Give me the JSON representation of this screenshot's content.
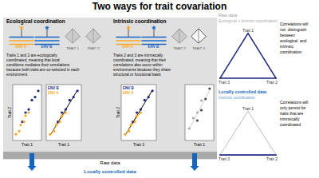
{
  "chart_data": [
    {
      "type": "scatter",
      "title": "Two ways for trait covariation",
      "x_label": "Trait 1",
      "y_label": "Trait 2",
      "xlim": [
        0,
        9
      ],
      "ylim": [
        0,
        9
      ],
      "tick_labels": false,
      "series": [
        {
          "color": "#1a237e",
          "x": [
            3,
            4,
            5,
            6,
            7,
            8
          ],
          "values": [
            3,
            4.5,
            5,
            6.5,
            7,
            8
          ]
        },
        {
          "color": "#f9a825",
          "x": [
            1,
            2,
            2.5,
            3.5,
            4,
            5
          ],
          "values": [
            1,
            1.5,
            2.5,
            3,
            4,
            4.5
          ]
        }
      ],
      "annotations": [
        "Ecological coordination",
        "Intrinsic coordination",
        "Traits 1 and 2 are ecologically\ncoordinated, meaning that local\nconditions mediates their correlations\nbecause both traits are co-selected in each\nenvironment",
        "Traits 2 and 3 are intrinsically\ncoordinated, meaning that their\ncorrelations also occur within\nenvironments because they share\nstructural or functional basis",
        "ENV A",
        "ENV B",
        "TRAIT 1",
        "TRAIT 2",
        "TRAIT 3",
        "Raw data",
        "Locally controlled data",
        "Ecological + intrinsic coordination",
        "Correlations will\nnot  distinguish\nbetween\necological  and\nintrinsic\ncoordination",
        "Correlations will\nonly persist for\ntraits that are\nintrinsically\ncoordinated",
        "Trait 1",
        "Trait 2",
        "Trait 3"
      ]
    },
    {
      "type": "scatter",
      "x_label": "Trait 1",
      "xlim": [
        0,
        9
      ],
      "ylim": [
        0,
        9
      ],
      "tick_labels": false,
      "legend": "upper left",
      "series": [
        {
          "name": "ENV B",
          "color": "#1a237e",
          "x": [
            3,
            4,
            5,
            6,
            7,
            8
          ],
          "values": [
            3,
            4.5,
            5,
            6.5,
            7,
            8
          ]
        },
        {
          "name": "ENV A",
          "color": "#f9a825",
          "x": [
            1,
            2,
            2.5,
            3.5,
            4,
            5
          ],
          "values": [
            1,
            1.5,
            2.5,
            3,
            4,
            4.5
          ]
        },
        {
          "type": "line",
          "color": "#000000",
          "x": [
            1,
            8
          ],
          "values": [
            0.8279857,
            8.1087344
          ]
        },
        {
          "type": "line",
          "color": "#f9a825",
          "x": [
            1,
            5
          ],
          "values": [
            0.8928571,
            4.6071429
          ]
        }
      ]
    },
    {
      "type": "scatter",
      "x_label": "Trait 3",
      "y_label": "Trait 2",
      "xlim": [
        0,
        9
      ],
      "ylim": [
        0,
        9
      ],
      "tick_labels": false,
      "legend": "upper left",
      "series": [
        {
          "name": "ENV B",
          "color": "#1a237e",
          "x": [
            3,
            4,
            5,
            6,
            7,
            8
          ],
          "values": [
            3,
            4.5,
            5,
            6.5,
            7,
            8
          ]
        },
        {
          "name": "ENV A",
          "color": "#f9a825",
          "x": [
            1,
            2,
            2.5,
            3.5,
            4,
            5
          ],
          "values": [
            1,
            1.5,
            2.5,
            3,
            4,
            4.5
          ]
        },
        {
          "type": "line",
          "color": "#000000",
          "x": [
            1,
            8
          ],
          "values": [
            0.8279857,
            8.1087344
          ]
        },
        {
          "type": "line",
          "color": "#f9a825",
          "x": [
            1,
            5
          ],
          "values": [
            0.8928571,
            4.6071429
          ]
        }
      ]
    },
    {
      "type": "scatter",
      "x_label": "Trait 1",
      "xlim": [
        0,
        7
      ],
      "ylim": [
        0,
        7
      ],
      "tick_labels": false,
      "series": [
        {
          "color": "#444444",
          "x": [
            3,
            4,
            5,
            6
          ],
          "values": [
            2.5,
            3.8,
            5.2,
            6.5
          ]
        },
        {
          "color": "#aaaaaa",
          "x": [
            1,
            2,
            3,
            4
          ],
          "values": [
            1.5,
            2.8,
            3.5,
            5.0
          ]
        },
        {
          "type": "line",
          "color": "#cccccc",
          "x": [
            1,
            6
          ],
          "values": [
            1.4194444,
            6.2805556
          ]
        }
      ]
    }
  ]
}
